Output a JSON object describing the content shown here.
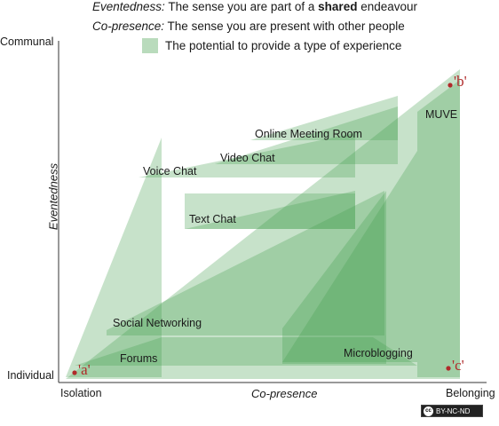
{
  "legend": {
    "eventedness_term": "Eventedness:",
    "eventedness_text_a": " The sense you are part of a ",
    "eventedness_bold": "shared",
    "eventedness_text_b": " endeavour",
    "copresence_term": "Co-presence:",
    "copresence_text": " The sense you are present with other people",
    "swatch_text": "The potential to provide a type of experience"
  },
  "axes": {
    "y_top": "Communal",
    "y_bottom": "Individual",
    "y_title": "Eventedness",
    "x_left": "Isolation",
    "x_right": "Belonging",
    "x_title": "Co-presence"
  },
  "shapes": {
    "online_meeting_room": "Online Meeting Room",
    "muve": "MUVE",
    "video_chat": "Video Chat",
    "voice_chat": "Voice Chat",
    "text_chat": "Text Chat",
    "social_networking": "Social Networking",
    "forums": "Forums",
    "microblogging": "Microblogging"
  },
  "points": {
    "a": "'a'",
    "b": "'b'",
    "c": "'c'"
  },
  "colors": {
    "fill": "#46a050",
    "point": "#b02a2a"
  },
  "license_badge": {
    "cc": "cc",
    "text": "BY-NC-ND"
  }
}
